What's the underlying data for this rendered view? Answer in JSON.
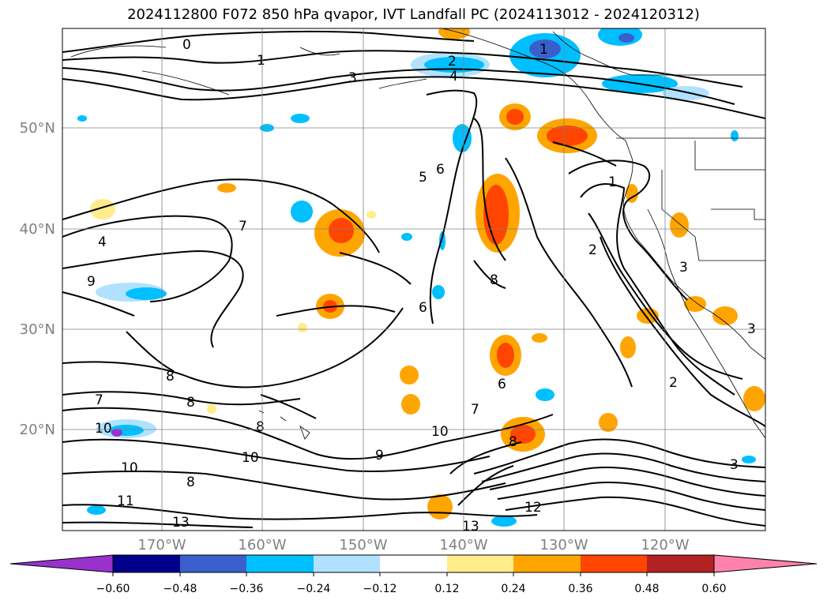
{
  "title": "2024112800 F072 850 hPa qvapor, IVT Landfall PC (2024113012 - 2024120312)",
  "map": {
    "lon_labels": [
      "170°W",
      "160°W",
      "150°W",
      "140°W",
      "130°W",
      "120°W"
    ],
    "lat_labels": [
      "50°N",
      "40°N",
      "30°N",
      "20°N"
    ],
    "grid": true
  },
  "contour_labels": [
    "0",
    "1",
    "2",
    "3",
    "4",
    "5",
    "6",
    "7",
    "8",
    "9",
    "10",
    "11",
    "12",
    "13"
  ],
  "colorbar": {
    "ticks": [
      "−0.60",
      "−0.48",
      "−0.36",
      "−0.24",
      "−0.12",
      "0.12",
      "0.24",
      "0.36",
      "0.48",
      "0.60"
    ],
    "colors": [
      "#9932cc",
      "#00008b",
      "#3a5fcd",
      "#00bfff",
      "#b0e2ff",
      "#ffffff",
      "#ffec8b",
      "#ffa500",
      "#ff4500",
      "#b22222",
      "#ff82ab"
    ],
    "extend": "both"
  }
}
